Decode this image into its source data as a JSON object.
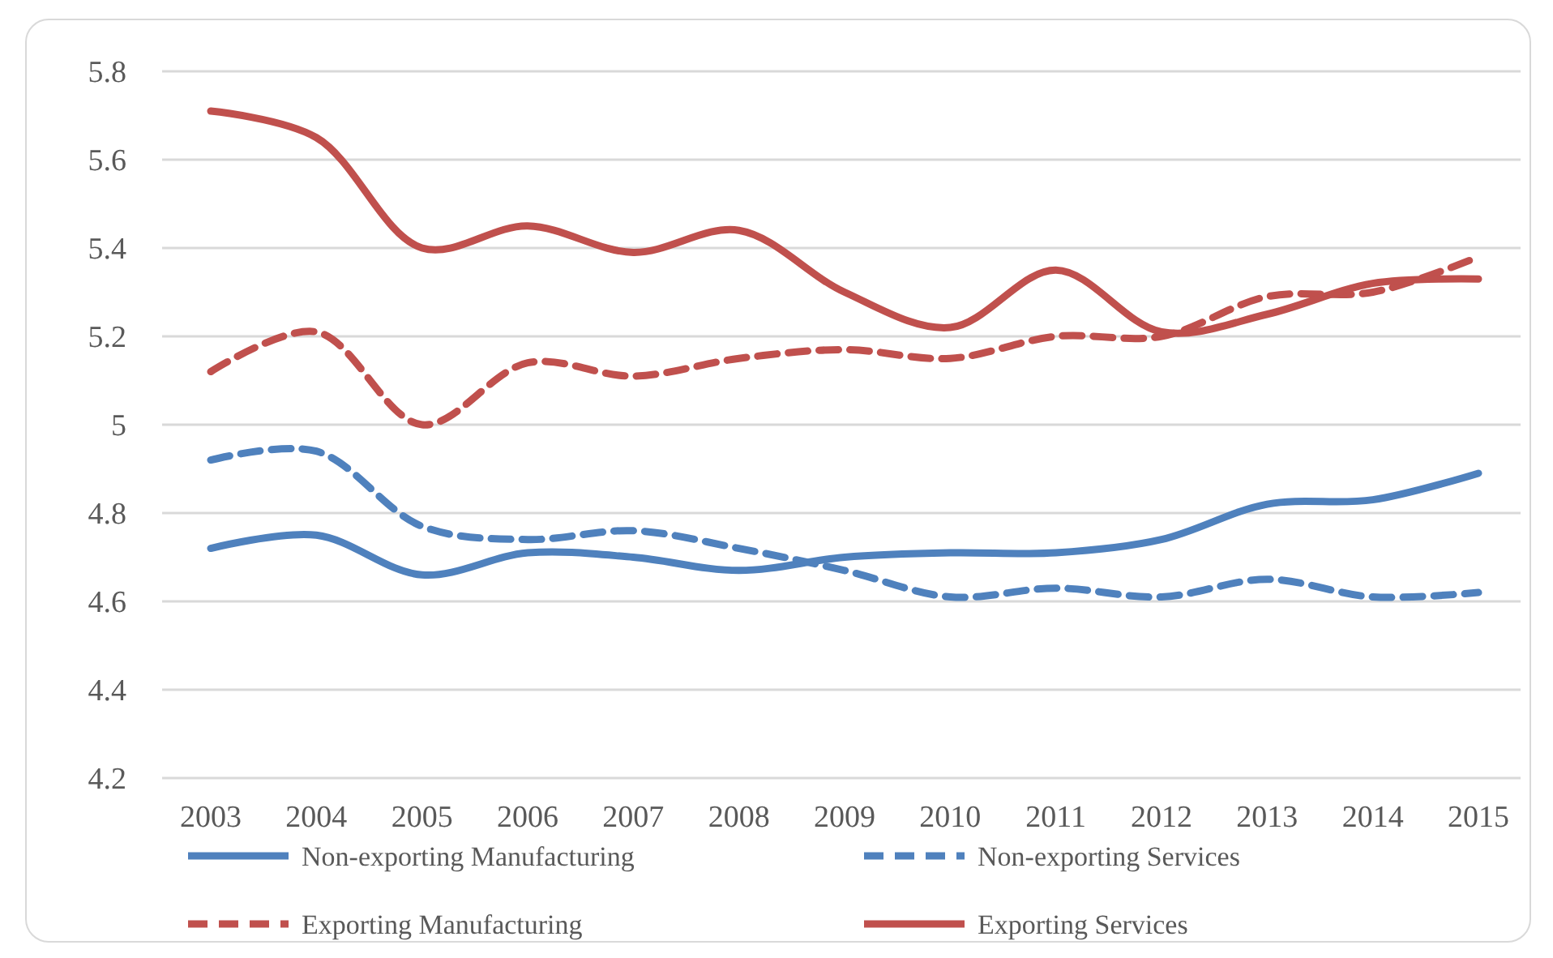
{
  "chart_data": {
    "type": "line",
    "categories": [
      "2003",
      "2004",
      "2005",
      "2006",
      "2007",
      "2008",
      "2009",
      "2010",
      "2011",
      "2012",
      "2013",
      "2014",
      "2015"
    ],
    "ylim": [
      4.2,
      5.8
    ],
    "yticks": [
      4.2,
      4.4,
      4.6,
      4.8,
      5,
      5.2,
      5.4,
      5.6,
      5.8
    ],
    "grid": "y",
    "legend": "bottom",
    "marker": "none",
    "series": [
      {
        "name": "Non-exporting Manufacturing",
        "color": "#4f81bd",
        "line_style": "solid",
        "values": [
          4.72,
          4.75,
          4.66,
          4.71,
          4.7,
          4.67,
          4.7,
          4.71,
          4.71,
          4.74,
          4.82,
          4.83,
          4.89
        ]
      },
      {
        "name": "Non-exporting Services",
        "color": "#4f81bd",
        "line_style": "dashed",
        "values": [
          4.92,
          4.94,
          4.77,
          4.74,
          4.76,
          4.72,
          4.67,
          4.61,
          4.63,
          4.61,
          4.65,
          4.61,
          4.62
        ]
      },
      {
        "name": "Exporting Manufacturing",
        "color": "#c0504d",
        "line_style": "dashed",
        "values": [
          5.12,
          5.21,
          5.0,
          5.14,
          5.11,
          5.15,
          5.17,
          5.15,
          5.2,
          5.2,
          5.29,
          5.3,
          5.38
        ]
      },
      {
        "name": "Exporting Services",
        "color": "#c0504d",
        "line_style": "solid",
        "values": [
          5.71,
          5.65,
          5.4,
          5.45,
          5.39,
          5.44,
          5.3,
          5.22,
          5.35,
          5.21,
          5.25,
          5.32,
          5.33
        ]
      }
    ]
  }
}
